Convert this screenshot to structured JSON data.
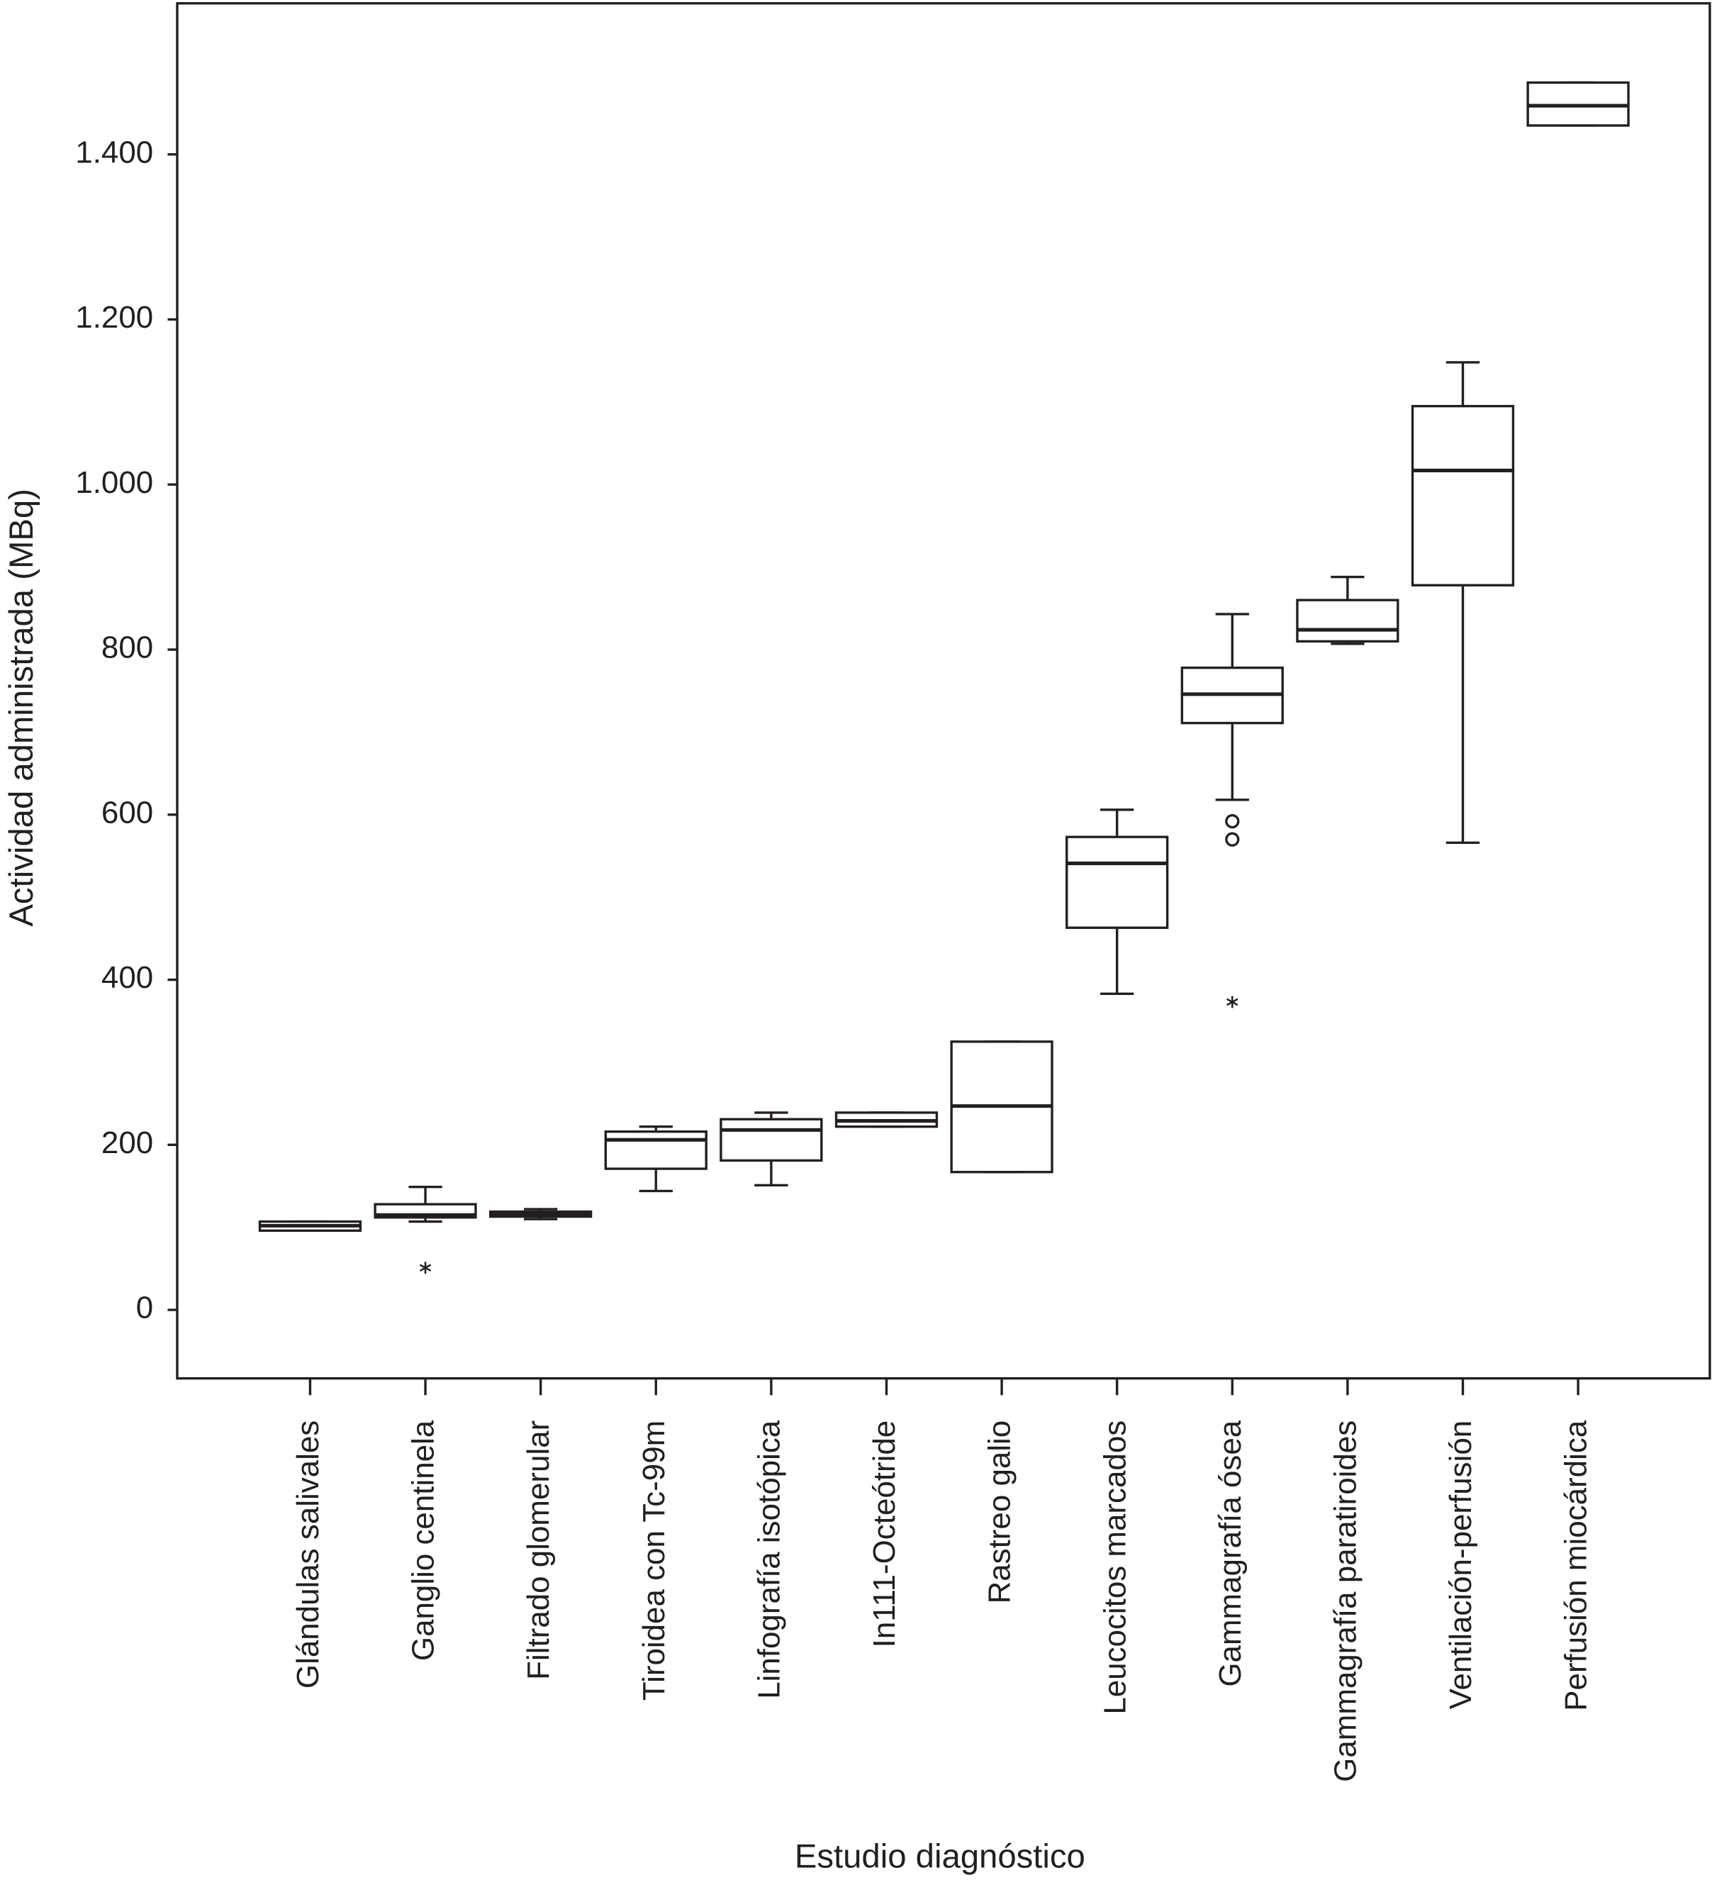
{
  "chart_data": {
    "type": "box",
    "y_label": "Actividad administrada (MBq)",
    "x_label": "Estudio diagnóstico",
    "categories": [
      "Glándulas salivales",
      "Ganglio centinela",
      "Filtrado glomerular",
      "Tiroidea con Tc-99m",
      "Linfografía isotópica",
      "In111-Octeótride",
      "Rastreo galio",
      "Leucocitos marcados",
      "Gammagrafía ósea",
      "Gammagrafía paratiroides",
      "Ventilación-perfusión",
      "Perfusión miocárdica"
    ],
    "min": [
      96,
      107,
      110,
      144,
      151,
      222,
      167,
      383,
      618,
      807,
      566,
      1435
    ],
    "q1": [
      96,
      112,
      113,
      171,
      181,
      222,
      167,
      463,
      711,
      810,
      878,
      1435
    ],
    "median": [
      102,
      115,
      116,
      206,
      218,
      229,
      247,
      541,
      746,
      824,
      1017,
      1459
    ],
    "q3": [
      107,
      128,
      119,
      216,
      231,
      239,
      325,
      573,
      778,
      860,
      1095,
      1487
    ],
    "max": [
      107,
      149,
      122,
      222,
      239,
      239,
      325,
      606,
      843,
      888,
      1148,
      1487
    ],
    "outliers": [
      [],
      [
        {
          "value": 51,
          "symbol": "star"
        }
      ],
      [],
      [],
      [],
      [],
      [],
      [],
      [
        {
          "value": 592,
          "symbol": "circle"
        },
        {
          "value": 570,
          "symbol": "circle"
        },
        {
          "value": 373,
          "symbol": "star"
        }
      ],
      [],
      [],
      []
    ],
    "color": "#231f20",
    "ylim": [
      -83,
      1583
    ],
    "yticks": [
      0,
      200,
      400,
      600,
      800,
      {
        "value": 1000,
        "label": "1.000"
      },
      {
        "value": 1200,
        "label": "1.200"
      },
      {
        "value": 1400,
        "label": "1.400"
      }
    ]
  }
}
